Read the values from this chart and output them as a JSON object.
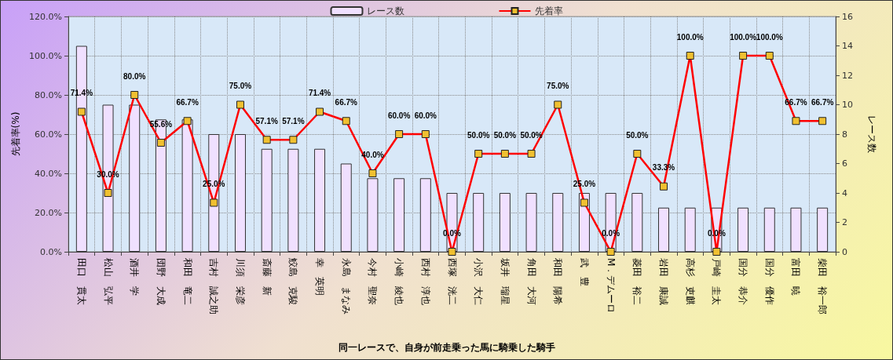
{
  "chart_data": {
    "type": "bar",
    "xlabel": "同一レースで、自身が前走乗った馬に騎乗した騎手",
    "ylabel": "先着率(%)",
    "y2label": "レース数",
    "categories": [
      "田口　貫太",
      "松山　弘平",
      "酒井　学",
      "団野　大成",
      "和田　竜二",
      "吉村　誠之助",
      "川須　栄彦",
      "斎藤　新",
      "鮫島　克駿",
      "幸　英明",
      "永島　まなみ",
      "今村　聖奈",
      "小崎　綾也",
      "西村　淳也",
      "西塚　洸二",
      "小沢　大仁",
      "坂井　瑠星",
      "角田　大河",
      "和田　陽希",
      "武　豊",
      "M．デムーロ",
      "菱田　裕二",
      "岩田　康誠",
      "高杉　吏麒",
      "戸崎　圭太",
      "国分　恭介",
      "国分　優作",
      "富田　暁",
      "柴田　裕一郎"
    ],
    "series": [
      {
        "name": "レース数",
        "axis": "y2",
        "color": "#f0e0ff",
        "values": [
          14,
          10,
          10,
          9,
          9,
          8,
          8,
          7,
          7,
          7,
          6,
          5,
          5,
          5,
          4,
          4,
          4,
          4,
          4,
          4,
          4,
          4,
          3,
          3,
          3,
          3,
          3,
          3,
          3
        ]
      },
      {
        "name": "先着率",
        "type": "line",
        "axis": "y",
        "color": "#ff0000",
        "marker": "square",
        "line_style": "solid",
        "values": [
          71.4,
          30.0,
          80.0,
          55.6,
          66.7,
          25.0,
          75.0,
          57.1,
          57.1,
          71.4,
          66.7,
          40.0,
          60.0,
          60.0,
          0.0,
          50.0,
          50.0,
          50.0,
          75.0,
          25.0,
          0.0,
          50.0,
          33.3,
          100.0,
          0.0,
          100.0,
          100.0,
          66.7,
          66.7
        ],
        "value_labels": [
          "71.4%",
          "30.0%",
          "80.0%",
          "55.6%",
          "66.7%",
          "25.0%",
          "75.0%",
          "57.1%",
          "57.1%",
          "71.4%",
          "66.7%",
          "40.0%",
          "60.0%",
          "60.0%",
          "0.0%",
          "50.0%",
          "50.0%",
          "50.0%",
          "75.0%",
          "25.0%",
          "0.0%",
          "50.0%",
          "33.3%",
          "100.0%",
          "0.0%",
          "100.0%",
          "100.0%",
          "66.7%",
          "66.7%"
        ]
      }
    ],
    "ylim": [
      0,
      120
    ],
    "yticks": [
      {
        "value": 0,
        "label": "0.0%"
      },
      {
        "value": 20,
        "label": "20.0%"
      },
      {
        "value": 40,
        "label": "40.0%"
      },
      {
        "value": 60,
        "label": "60.0%"
      },
      {
        "value": 80,
        "label": "80.0%"
      },
      {
        "value": 100,
        "label": "100.0%"
      },
      {
        "value": 120,
        "label": "120.0%"
      }
    ],
    "y2lim": [
      0,
      16
    ],
    "y2ticks": [
      0,
      2,
      4,
      6,
      8,
      10,
      12,
      14,
      16
    ],
    "grid": true,
    "legend": "top"
  }
}
